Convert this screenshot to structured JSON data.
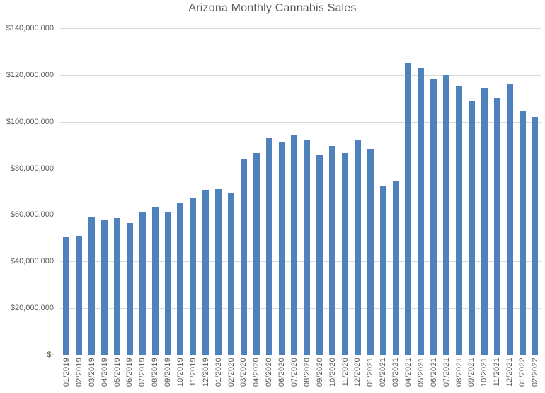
{
  "colors": {
    "bar": "#4F81BD",
    "gridline": "#D9D9D9",
    "axis_text": "#595959",
    "background": "#FFFFFF"
  },
  "chart_data": {
    "type": "bar",
    "title": "Arizona Monthly Cannabis Sales",
    "xlabel": "",
    "ylabel": "",
    "grid": true,
    "legend": false,
    "ylim": [
      0,
      140000000
    ],
    "y_ticks": [
      {
        "label": "$140,000,000",
        "value": 140000000
      },
      {
        "label": "$120,000,000",
        "value": 120000000
      },
      {
        "label": "$100,000,000",
        "value": 100000000
      },
      {
        "label": "$80,000,000",
        "value": 80000000
      },
      {
        "label": "$60,000,000",
        "value": 60000000
      },
      {
        "label": "$40,000,000",
        "value": 40000000
      },
      {
        "label": "$20,000,000",
        "value": 20000000
      },
      {
        "label": "$-",
        "value": 0
      }
    ],
    "categories": [
      "01/2019",
      "02/2019",
      "03/2019",
      "04/2019",
      "05/2019",
      "06/2019",
      "07/2019",
      "08/2019",
      "09/2019",
      "10/2019",
      "11/2019",
      "12/2019",
      "01/2020",
      "02/2020",
      "03/2020",
      "04/2020",
      "05/2020",
      "06/2020",
      "07/2020",
      "08/2020",
      "09/2020",
      "10/2020",
      "11/2020",
      "12/2020",
      "01/2021",
      "02/2021",
      "03/2021",
      "04/2021",
      "05/2021",
      "06/2021",
      "07/2021",
      "08/2021",
      "09/2021",
      "10/2021",
      "11/2021",
      "12/2021",
      "01/2022",
      "02/2022"
    ],
    "values": [
      50500000,
      51000000,
      59000000,
      58000000,
      58500000,
      56500000,
      61000000,
      63500000,
      61500000,
      65000000,
      67500000,
      70500000,
      71000000,
      69500000,
      84000000,
      86500000,
      93000000,
      91500000,
      94000000,
      92000000,
      85500000,
      89500000,
      86500000,
      92000000,
      88000000,
      72500000,
      74500000,
      125000000,
      123000000,
      118000000,
      120000000,
      115000000,
      109000000,
      114500000,
      110000000,
      116000000,
      104500000,
      102000000
    ]
  }
}
